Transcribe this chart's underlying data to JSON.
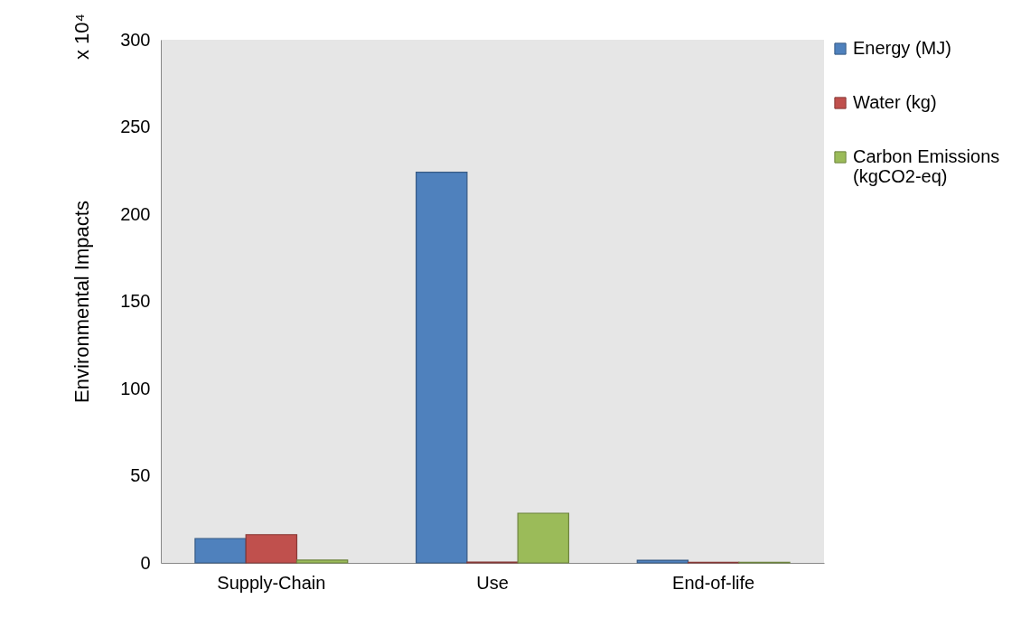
{
  "chart_data": {
    "type": "bar",
    "ylabel": "Environmental Impacts",
    "annotations": [
      "x 10⁴"
    ],
    "categories": [
      "Supply-Chain",
      "Use",
      "End-of-life"
    ],
    "series": [
      {
        "name": "Energy (MJ)",
        "color": "#4f81bd",
        "values": [
          14,
          224,
          1.5
        ]
      },
      {
        "name": "Water (kg)",
        "color": "#c0504d",
        "values": [
          16.2,
          0.5,
          0.3
        ]
      },
      {
        "name": "Carbon Emissions (kgCO2-eq)",
        "color": "#9bbb59",
        "values": [
          1.6,
          28.5,
          0.3
        ]
      }
    ],
    "ylim": [
      0,
      300
    ],
    "yticks": [
      0,
      50,
      100,
      150,
      200,
      250,
      300
    ],
    "grid": false,
    "legend": "right"
  }
}
